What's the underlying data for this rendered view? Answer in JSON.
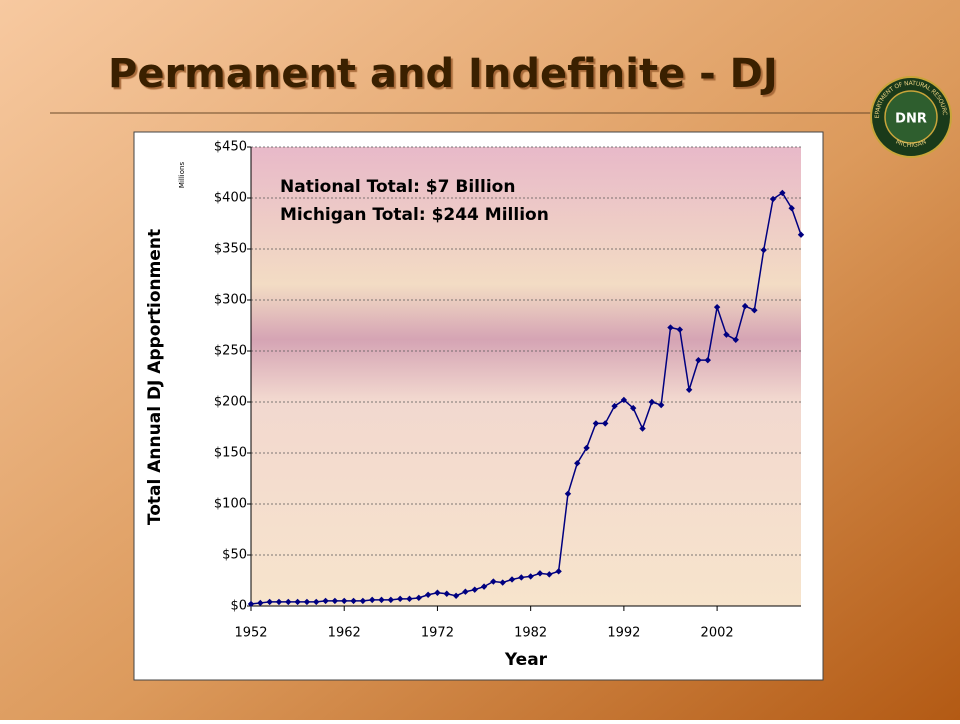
{
  "slide": {
    "title": "Permanent and Indefinite - DJ",
    "logo": {
      "center": "DNR",
      "ring_top": "DEPARTMENT OF NATURAL RESOURCES",
      "ring_bottom": "MICHIGAN"
    }
  },
  "chart_data": {
    "type": "line",
    "x_label": "Year",
    "y_label": "Total Annual DJ Apportionment",
    "y_unit": "Millions",
    "annotations": [
      "National Total:  $7 Billion",
      "Michigan Total: $244 Million"
    ],
    "x": [
      1952,
      1953,
      1954,
      1955,
      1956,
      1957,
      1958,
      1959,
      1960,
      1961,
      1962,
      1963,
      1964,
      1965,
      1966,
      1967,
      1968,
      1969,
      1970,
      1971,
      1972,
      1973,
      1974,
      1975,
      1976,
      1977,
      1978,
      1979,
      1980,
      1981,
      1982,
      1983,
      1984,
      1985,
      1986,
      1987,
      1988,
      1989,
      1990,
      1991,
      1992,
      1993,
      1994,
      1995,
      1996,
      1997,
      1998,
      1999,
      2000,
      2001,
      2002,
      2003,
      2004,
      2005,
      2006,
      2007,
      2008,
      2009,
      2010,
      2011
    ],
    "series": [
      {
        "name": "Michigan",
        "color": "#000080",
        "values": [
          2,
          3,
          4,
          4,
          4,
          4,
          4,
          4,
          5,
          5,
          5,
          5,
          5,
          6,
          6,
          6,
          7,
          7,
          8,
          11,
          13,
          12,
          10,
          14,
          16,
          19,
          24,
          23,
          26,
          28,
          29,
          32,
          31,
          34,
          110,
          140,
          155,
          179,
          179,
          196,
          202,
          194,
          174,
          200,
          197,
          273,
          271,
          212,
          241,
          241,
          293,
          266,
          261,
          294,
          290,
          349,
          399,
          405,
          390,
          364
        ]
      }
    ],
    "xlim": [
      1952,
      2011
    ],
    "xticks": [
      1952,
      1962,
      1972,
      1982,
      1992,
      2002
    ],
    "ylim": [
      0,
      450
    ],
    "yticks": [
      {
        "value": 0,
        "label": "$0"
      },
      {
        "value": 50,
        "label": "$50"
      },
      {
        "value": 100,
        "label": "$100"
      },
      {
        "value": 150,
        "label": "$150"
      },
      {
        "value": 200,
        "label": "$200"
      },
      {
        "value": 250,
        "label": "$250"
      },
      {
        "value": 300,
        "label": "$300"
      },
      {
        "value": 350,
        "label": "$350"
      },
      {
        "value": 400,
        "label": "$400"
      },
      {
        "value": 450,
        "label": "$450"
      }
    ],
    "grid": true
  }
}
